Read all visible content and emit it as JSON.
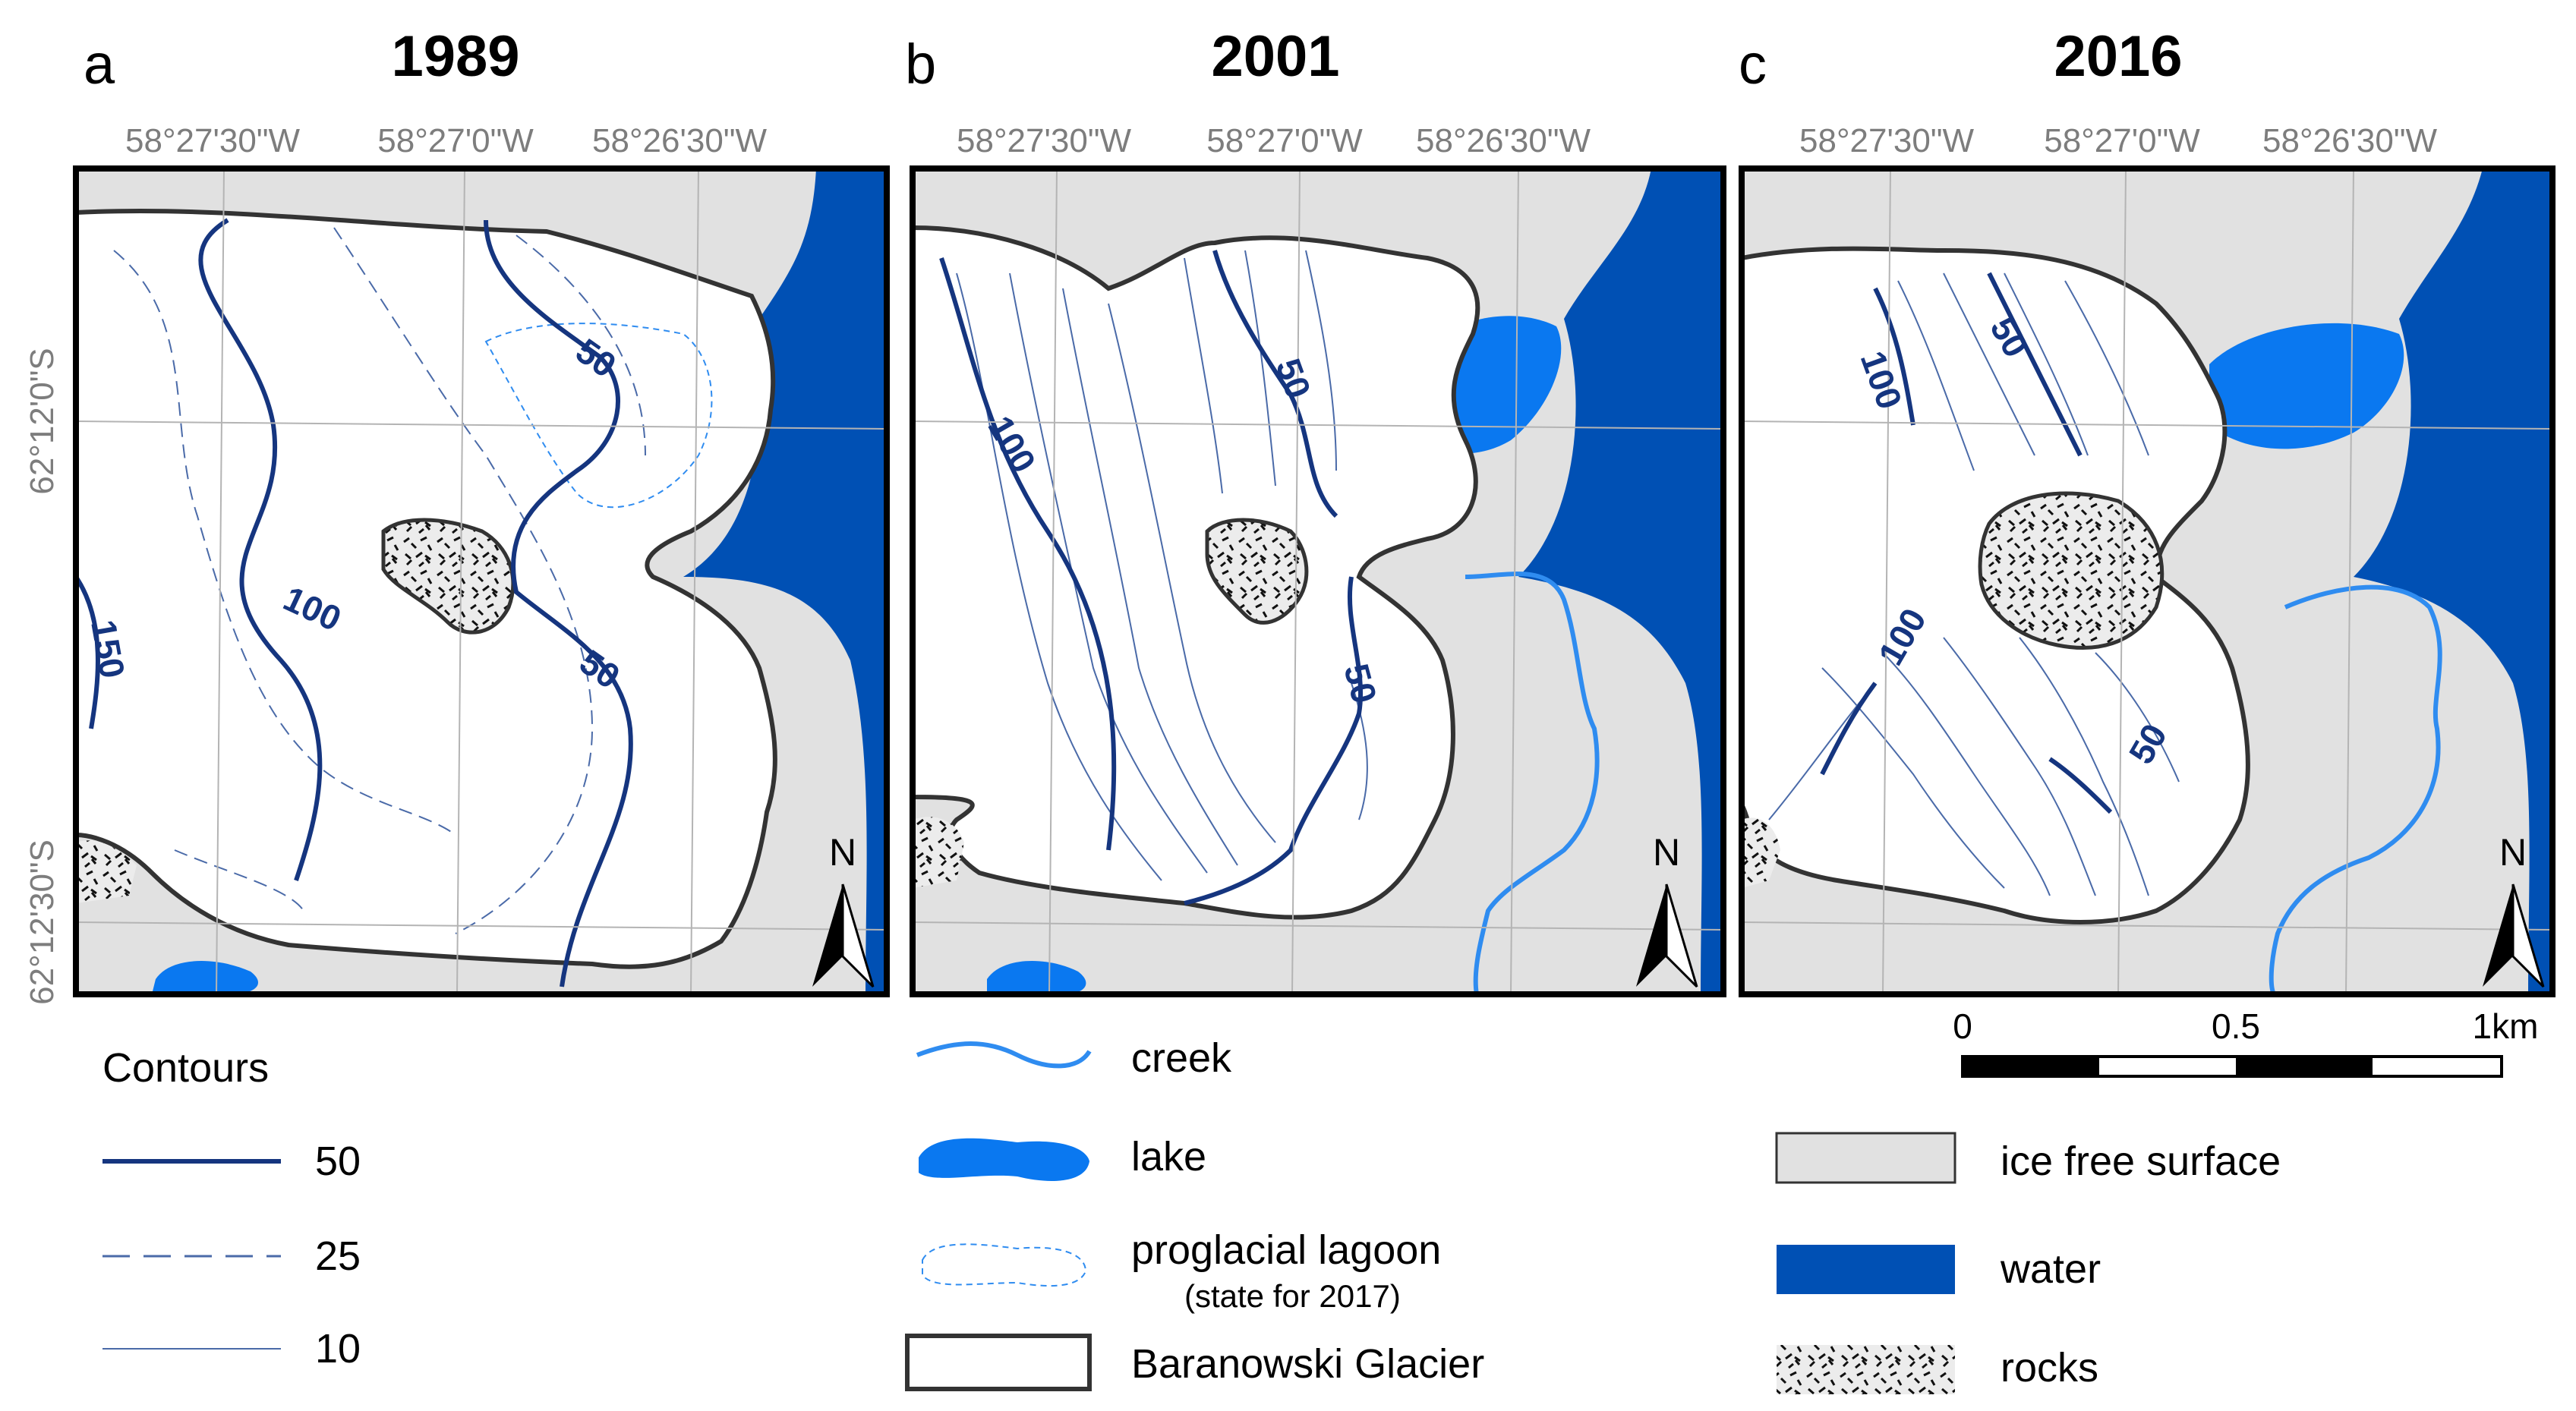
{
  "panels": [
    {
      "letter": "a",
      "year": "1989",
      "lon_ticks": [
        "58°27'30\"W",
        "58°27'0\"W",
        "58°26'30\"W"
      ],
      "lat_ticks": [
        "62°12'0\"S",
        "62°12'30\"S"
      ],
      "contour_labels": [
        "150",
        "100",
        "50",
        "50"
      ],
      "north": "N"
    },
    {
      "letter": "b",
      "year": "2001",
      "lon_ticks": [
        "58°27'30\"W",
        "58°27'0\"W",
        "58°26'30\"W"
      ],
      "contour_labels": [
        "100",
        "50",
        "50"
      ],
      "north": "N"
    },
    {
      "letter": "c",
      "year": "2016",
      "lon_ticks": [
        "58°27'30\"W",
        "58°27'0\"W",
        "58°26'30\"W"
      ],
      "contour_labels": [
        "100",
        "50",
        "100",
        "50"
      ],
      "north": "N"
    }
  ],
  "scale_bar": {
    "labels": [
      "0",
      "0.5",
      "1km"
    ]
  },
  "legend": {
    "contours_title": "Contours",
    "contours": [
      "50",
      "25",
      "10"
    ],
    "features": {
      "creek": "creek",
      "lake": "lake",
      "lagoon": "proglacial lagoon",
      "lagoon_note": "(state for 2017)",
      "glacier": "Baranowski Glacier"
    },
    "surfaces": {
      "ice_free": "ice free surface",
      "water": "water",
      "rocks": "rocks"
    }
  },
  "colors": {
    "ice_free": "#e1e1e1",
    "water": "#0050b4",
    "lake": "#0a78f0",
    "creek": "#2f8cf0",
    "contour": "#15357f",
    "contour_thin": "#4a6aa8",
    "outline": "#333333"
  }
}
